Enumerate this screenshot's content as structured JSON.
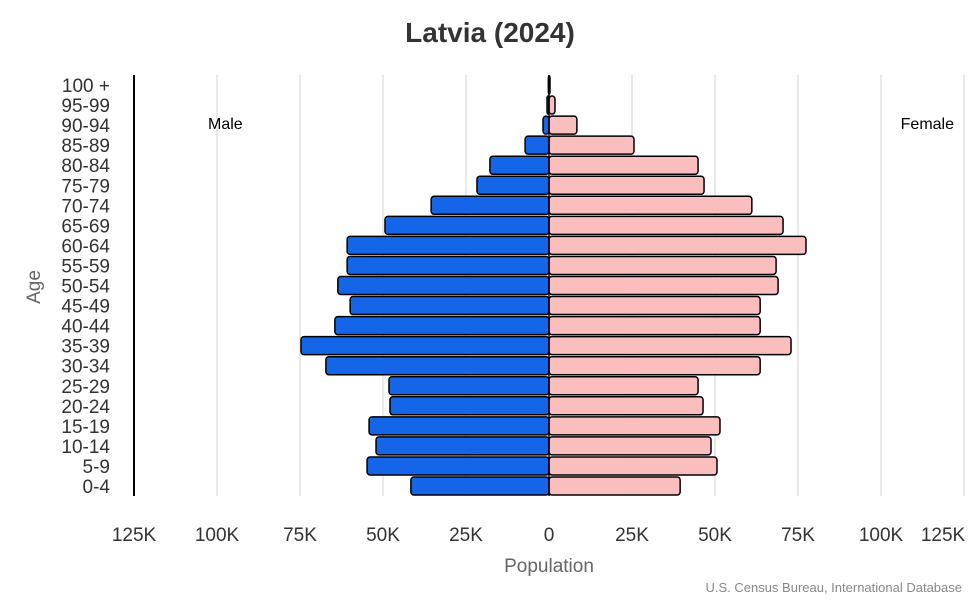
{
  "chart_data": {
    "type": "bar",
    "orientation": "horizontal-pyramid",
    "title": "Latvia (2024)",
    "xlabel": "Population",
    "ylabel": "Age",
    "source": "U.S. Census Bureau, International Database",
    "xlim": [
      -125000,
      125000
    ],
    "x_tick_labels": [
      "125K",
      "100K",
      "75K",
      "50K",
      "25K",
      "0",
      "25K",
      "50K",
      "75K",
      "100K",
      "125K"
    ],
    "grid": true,
    "categories": [
      "0-4",
      "5-9",
      "10-14",
      "15-19",
      "20-24",
      "25-29",
      "30-34",
      "35-39",
      "40-44",
      "45-49",
      "50-54",
      "55-59",
      "60-64",
      "65-69",
      "70-74",
      "75-79",
      "80-84",
      "85-89",
      "90-94",
      "95-99",
      "100 +"
    ],
    "series": [
      {
        "name": "Male",
        "color": "#1565e8",
        "values": [
          41600,
          54800,
          52100,
          54200,
          47900,
          48200,
          67200,
          74700,
          64500,
          59900,
          63600,
          60800,
          60800,
          49400,
          35500,
          21700,
          17800,
          7200,
          1800,
          600,
          200
        ]
      },
      {
        "name": "Female",
        "color": "#fbbebe",
        "values": [
          39500,
          50600,
          48800,
          51500,
          46400,
          44900,
          63600,
          72900,
          63600,
          63600,
          69000,
          68400,
          77400,
          70500,
          61100,
          46700,
          44900,
          25600,
          8400,
          1800,
          300
        ]
      }
    ]
  }
}
